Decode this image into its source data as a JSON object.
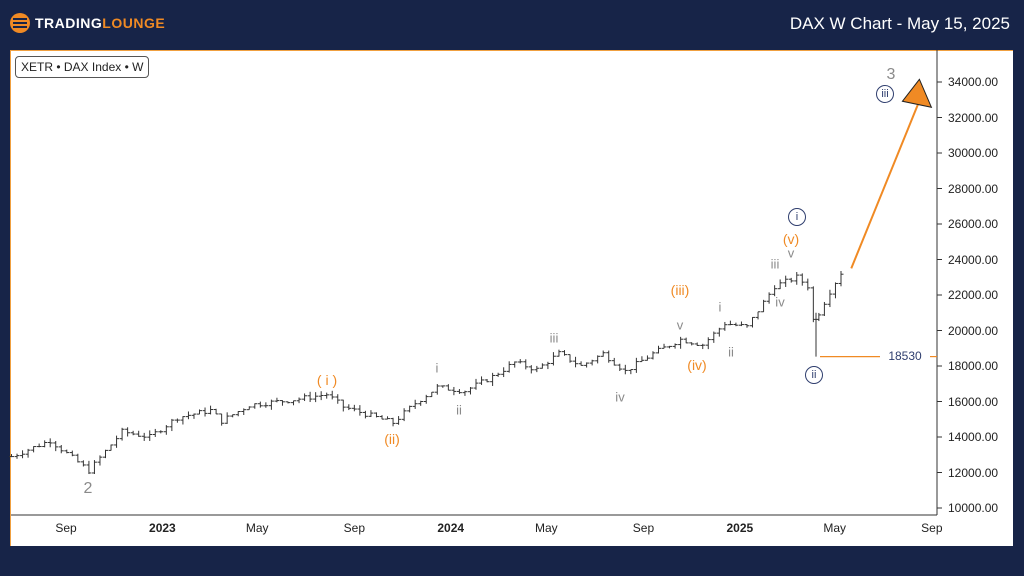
{
  "header": {
    "brand_part1": "TRADING",
    "brand_part2": "LOUNGE",
    "title": "DAX W Chart - May 15, 2025"
  },
  "symbol_label": "XETR • DAX Index • W",
  "colors": {
    "background": "#172448",
    "accent": "#f08a24",
    "wave_circle": "#2f3e6e",
    "bars": "#333333"
  },
  "chart_data": {
    "type": "ohlc",
    "xlabel": "",
    "ylabel": "",
    "ylim": [
      10000,
      35000
    ],
    "xlim": [
      "2022-06-22",
      "2025-09-08"
    ],
    "grid": false,
    "y_ticks": [
      "34000.00",
      "32000.00",
      "30000.00",
      "28000.00",
      "26000.00",
      "24000.00",
      "22000.00",
      "20000.00",
      "18000.00",
      "16000.00",
      "14000.00",
      "12000.00",
      "10000.00"
    ],
    "x_ticks": [
      {
        "label": "Sep",
        "date": "2022-09-01"
      },
      {
        "label": "2023",
        "date": "2023-01-01",
        "bold": true
      },
      {
        "label": "May",
        "date": "2023-05-01"
      },
      {
        "label": "Sep",
        "date": "2023-09-01"
      },
      {
        "label": "2024",
        "date": "2024-01-01",
        "bold": true
      },
      {
        "label": "May",
        "date": "2024-05-01"
      },
      {
        "label": "Sep",
        "date": "2024-09-01"
      },
      {
        "label": "2025",
        "date": "2025-01-01",
        "bold": true
      },
      {
        "label": "May",
        "date": "2025-05-01"
      },
      {
        "label": "Sep",
        "date": "2025-09-01"
      }
    ],
    "series": [
      {
        "points": [
          [
            "2022-06-24",
            12900
          ],
          [
            "2022-08-12",
            13800
          ],
          [
            "2022-09-30",
            12100
          ],
          [
            "2022-11-11",
            14300
          ],
          [
            "2022-12-16",
            14000
          ],
          [
            "2023-01-20",
            15100
          ],
          [
            "2023-03-03",
            15500
          ],
          [
            "2023-03-17",
            14900
          ],
          [
            "2023-04-21",
            15800
          ],
          [
            "2023-06-16",
            16100
          ],
          [
            "2023-07-28",
            16400
          ],
          [
            "2023-08-18",
            15700
          ],
          [
            "2023-10-20",
            14800
          ],
          [
            "2023-11-17",
            15900
          ],
          [
            "2023-12-15",
            16800
          ],
          [
            "2024-01-19",
            16600
          ],
          [
            "2024-02-23",
            17400
          ],
          [
            "2024-03-22",
            18200
          ],
          [
            "2024-04-19",
            17800
          ],
          [
            "2024-05-17",
            18700
          ],
          [
            "2024-06-14",
            18000
          ],
          [
            "2024-07-12",
            18700
          ],
          [
            "2024-08-09",
            17700
          ],
          [
            "2024-09-13",
            18700
          ],
          [
            "2024-10-18",
            19500
          ],
          [
            "2024-11-15",
            19200
          ],
          [
            "2024-12-13",
            20400
          ],
          [
            "2025-01-10",
            20200
          ],
          [
            "2025-02-14",
            22500
          ],
          [
            "2025-03-14",
            23000
          ],
          [
            "2025-03-28",
            22500
          ],
          [
            "2025-04-04",
            20600
          ],
          [
            "2025-04-11",
            21000
          ],
          [
            "2025-04-25",
            22200
          ],
          [
            "2025-05-15",
            23700
          ]
        ]
      }
    ],
    "support_level": {
      "value": 18530,
      "label": "18530"
    },
    "projection": {
      "from": [
        "2025-05-22",
        23500
      ],
      "to": [
        "2025-08-15",
        32800
      ]
    },
    "wave_labels": [
      "2",
      "( i )",
      "(ii)",
      "i",
      "ii",
      "iii",
      "iv",
      "v",
      "(iii)",
      "(iv)",
      "i",
      "ii",
      "iii",
      "iv",
      "v",
      "(v)",
      "i",
      "ii",
      "iii",
      "3"
    ]
  }
}
